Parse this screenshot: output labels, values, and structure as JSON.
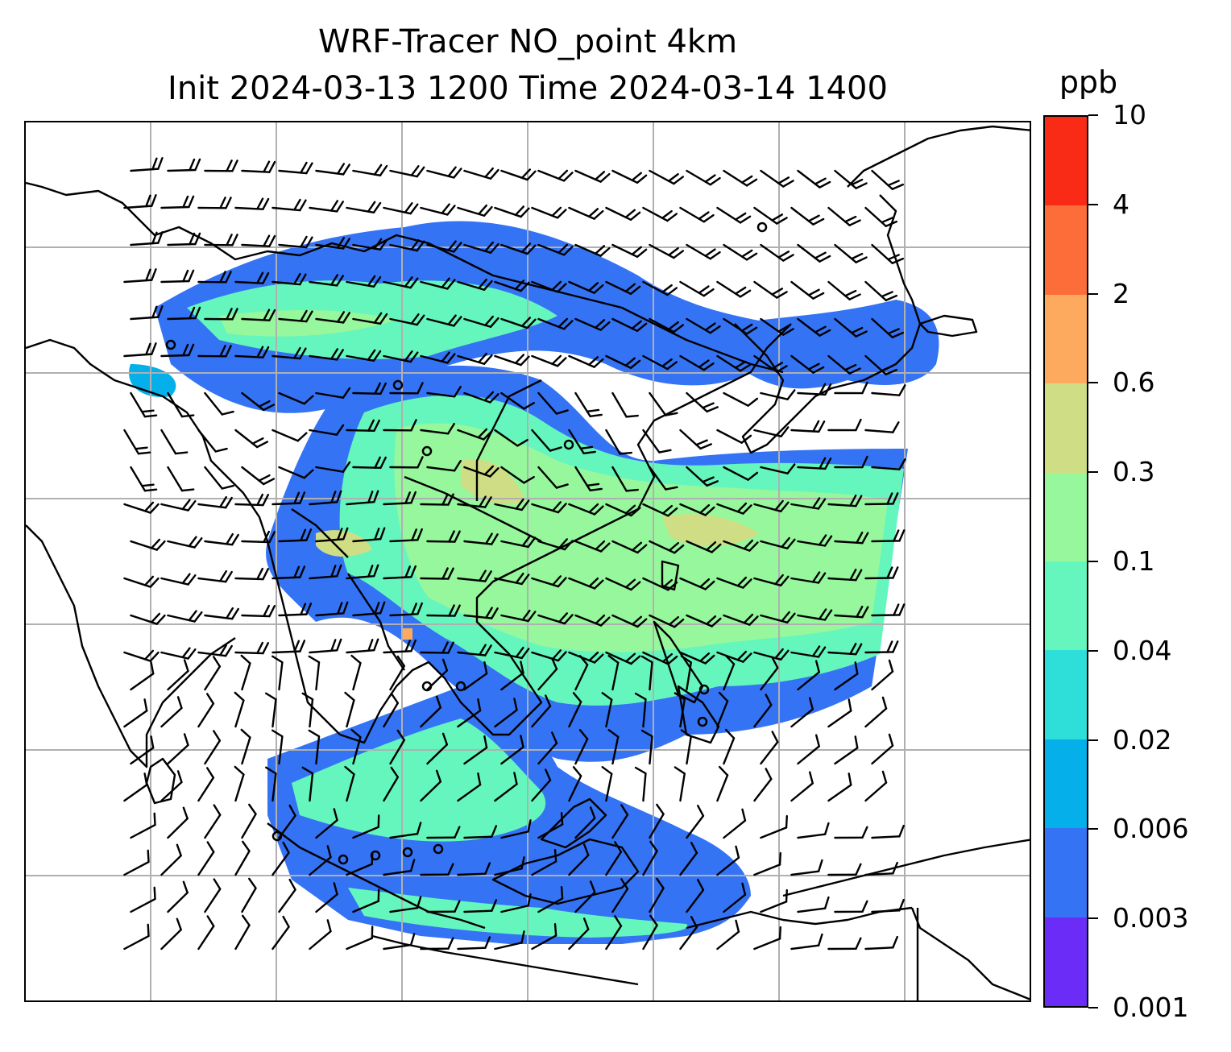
{
  "title": {
    "line1": "WRF-Tracer NO_point 4km",
    "line2": "Init 2024-03-13 1200 Time 2024-03-14 1400"
  },
  "colorbar": {
    "unit": "ppb",
    "levels": [
      "0.001",
      "0.003",
      "0.006",
      "0.02",
      "0.04",
      "0.1",
      "0.3",
      "0.6",
      "2",
      "4",
      "10"
    ],
    "colors": [
      "#6a2cf6",
      "#3573f5",
      "#05b0ea",
      "#2ddfd8",
      "#65f6bd",
      "#97f79c",
      "#cfde84",
      "#fdaa5e",
      "#fd6d39",
      "#f92b17"
    ]
  },
  "map": {
    "gridlines": "on",
    "gridline_color": "#b0b0b0",
    "coastline_color": "#000000",
    "features": [
      "coastlines",
      "country-borders",
      "wind-barbs",
      "tracer-concentration-fill",
      "point-source-markers"
    ]
  }
}
